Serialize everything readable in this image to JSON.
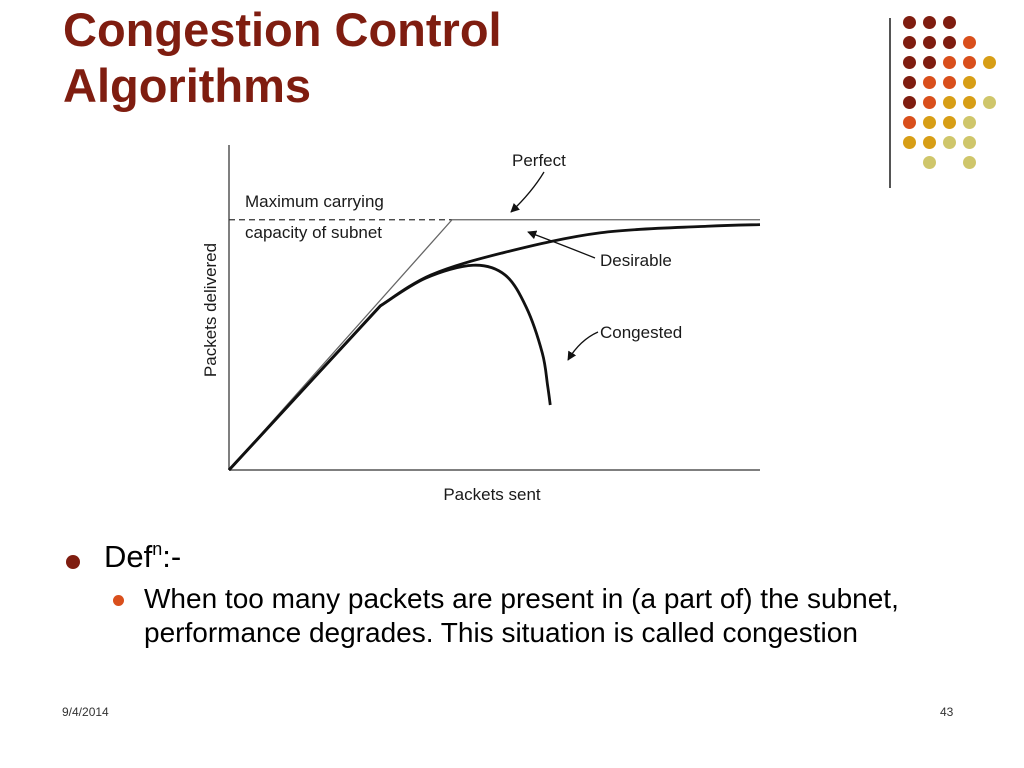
{
  "slide": {
    "title_line1": "Congestion Control",
    "title_line2": "Algorithms",
    "date": "9/4/2014",
    "page_number": "43"
  },
  "decoration": {
    "dot_colors": {
      "dark_red": "#7f1d10",
      "orange": "#d94f1c",
      "gold": "#d79e16",
      "khaki": "#cfc66b"
    },
    "dot_grid": [
      [
        "dark_red",
        "dark_red",
        "dark_red",
        "",
        "",
        ""
      ],
      [
        "dark_red",
        "dark_red",
        "dark_red",
        "orange",
        "",
        ""
      ],
      [
        "dark_red",
        "dark_red",
        "orange",
        "orange",
        "gold",
        ""
      ],
      [
        "dark_red",
        "orange",
        "orange",
        "gold",
        "",
        ""
      ],
      [
        "dark_red",
        "orange",
        "gold",
        "gold",
        "khaki",
        ""
      ],
      [
        "orange",
        "gold",
        "gold",
        "khaki",
        "",
        ""
      ],
      [
        "gold",
        "gold",
        "khaki",
        "khaki",
        "",
        ""
      ],
      [
        "",
        "khaki",
        "",
        "khaki",
        "",
        ""
      ]
    ]
  },
  "chart_data": {
    "type": "line",
    "xlabel": "Packets sent",
    "ylabel": "Packets delivered",
    "xlim": [
      0,
      100
    ],
    "ylim": [
      0,
      100
    ],
    "capacity_line": {
      "y": 77,
      "label_line1": "Maximum carrying",
      "label_line2": "capacity of subnet"
    },
    "series": [
      {
        "name": "Perfect",
        "points": [
          [
            0,
            0
          ],
          [
            42,
            77
          ],
          [
            100,
            77
          ]
        ]
      },
      {
        "name": "Desirable",
        "points": [
          [
            0,
            0
          ],
          [
            28.5,
            50.5
          ],
          [
            38,
            60
          ],
          [
            52,
            67
          ],
          [
            70,
            73
          ],
          [
            90,
            75
          ],
          [
            100,
            75.5
          ]
        ]
      },
      {
        "name": "Congested",
        "points": [
          [
            0,
            0
          ],
          [
            28.5,
            50.5
          ],
          [
            37,
            59
          ],
          [
            46,
            63
          ],
          [
            52,
            60
          ],
          [
            56,
            50
          ],
          [
            59,
            36
          ],
          [
            60,
            26
          ],
          [
            60.5,
            20
          ]
        ]
      }
    ]
  },
  "bullets": [
    {
      "text": "Def",
      "superscript": "n",
      "suffix": ":-",
      "children": [
        "When too many packets are present in (a part of) the subnet, performance degrades. This situation is called congestion"
      ]
    }
  ]
}
